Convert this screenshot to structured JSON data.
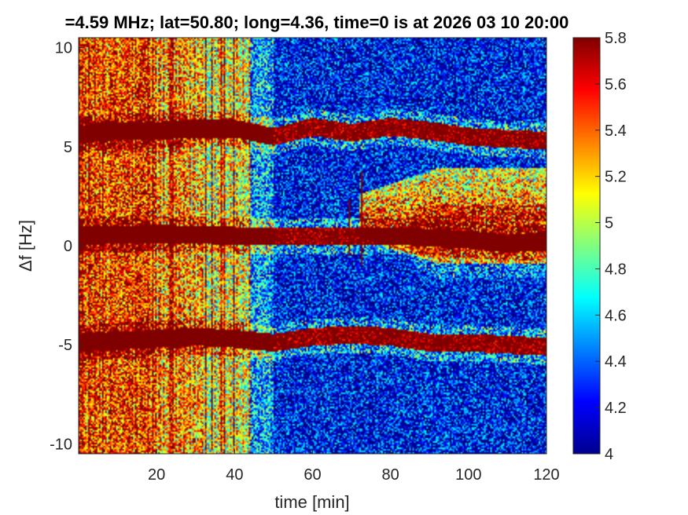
{
  "chart_data": {
    "type": "heatmap",
    "title": "=4.59 MHz;  lat=50.80; long=4.36, time=0 is at 2026 03 10 20:00",
    "xlabel": "time [min]",
    "ylabel": "Δf [Hz]",
    "xlim": [
      0,
      120
    ],
    "ylim": [
      -10.5,
      10.5
    ],
    "xticks": [
      "20",
      "40",
      "60",
      "80",
      "100",
      "120"
    ],
    "yticks": [
      "10",
      "5",
      "0",
      "-5",
      "-10"
    ],
    "colorbar": {
      "range": [
        4,
        5.8
      ],
      "ticks": [
        "5.8",
        "5.6",
        "5.4",
        "5.2",
        "5",
        "4.8",
        "4.6",
        "4.4",
        "4.2",
        "4"
      ],
      "colormap": "jet"
    },
    "traces": [
      {
        "points": [
          [
            0,
            5.6
          ],
          [
            10,
            5.8
          ],
          [
            20,
            5.8
          ],
          [
            30,
            5.9
          ],
          [
            40,
            5.9
          ],
          [
            50,
            5.5
          ],
          [
            60,
            6.0
          ],
          [
            70,
            5.7
          ],
          [
            80,
            6.0
          ],
          [
            90,
            5.8
          ],
          [
            100,
            5.5
          ],
          [
            110,
            5.4
          ],
          [
            120,
            5.3
          ]
        ]
      },
      {
        "points": [
          [
            0,
            0.5
          ],
          [
            20,
            0.6
          ],
          [
            40,
            0.5
          ],
          [
            60,
            0.5
          ],
          [
            70,
            0.5
          ],
          [
            80,
            0.5
          ],
          [
            90,
            0.4
          ],
          [
            100,
            0.3
          ],
          [
            110,
            0.1
          ],
          [
            120,
            0.2
          ]
        ]
      },
      {
        "points": [
          [
            0,
            -4.9
          ],
          [
            10,
            -4.8
          ],
          [
            20,
            -4.7
          ],
          [
            30,
            -4.6
          ],
          [
            40,
            -4.7
          ],
          [
            50,
            -4.9
          ],
          [
            60,
            -4.6
          ],
          [
            70,
            -4.5
          ],
          [
            80,
            -4.6
          ],
          [
            90,
            -4.9
          ],
          [
            100,
            -4.9
          ],
          [
            110,
            -5.0
          ],
          [
            120,
            -5.1
          ]
        ]
      }
    ],
    "diffuse_band": {
      "x_start": 72,
      "y_center": 1.5,
      "y_half_width": 1.1
    },
    "strong_column_range": [
      0,
      44
    ]
  }
}
